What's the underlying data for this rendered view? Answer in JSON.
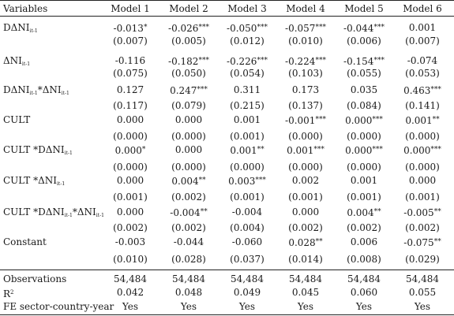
{
  "header": {
    "variables": "Variables",
    "models": [
      "Model 1",
      "Model 2",
      "Model 3",
      "Model 4",
      "Model 5",
      "Model 6"
    ]
  },
  "rows": [
    {
      "label": [
        {
          "t": "DΔNI"
        },
        {
          "t": "it-1",
          "s": "sub"
        }
      ],
      "coef": [
        [
          "-0.013",
          "*"
        ],
        [
          "-0.026",
          "***"
        ],
        [
          "-0.050",
          "***"
        ],
        [
          "-0.057",
          "***"
        ],
        [
          "-0.044",
          "***"
        ],
        [
          "0.001",
          ""
        ]
      ],
      "se": [
        "(0.007)",
        "(0.005)",
        "(0.012)",
        "(0.010)",
        "(0.006)",
        "(0.007)"
      ]
    },
    {
      "label": [
        {
          "t": "ΔNI"
        },
        {
          "t": "it-1",
          "s": "sub"
        }
      ],
      "coef": [
        [
          "-0.116",
          ""
        ],
        [
          "-0.182",
          "***"
        ],
        [
          "-0.226",
          "***"
        ],
        [
          "-0.224",
          "***"
        ],
        [
          "-0.154",
          "***"
        ],
        [
          "-0.074",
          ""
        ]
      ],
      "se": [
        "(0.075)",
        "(0.050)",
        "(0.054)",
        "(0.103)",
        "(0.055)",
        "(0.053)"
      ]
    },
    {
      "label": [
        {
          "t": "DΔNI"
        },
        {
          "t": "it-1",
          "s": "sub"
        },
        {
          "t": "*ΔNI"
        },
        {
          "t": "it-1",
          "s": "sub"
        }
      ],
      "coef": [
        [
          "0.127",
          ""
        ],
        [
          "0.247",
          "***"
        ],
        [
          "0.311",
          ""
        ],
        [
          "0.173",
          ""
        ],
        [
          "0.035",
          ""
        ],
        [
          "0.463",
          "***"
        ]
      ],
      "se": [
        "(0.117)",
        "(0.079)",
        "(0.215)",
        "(0.137)",
        "(0.084)",
        "(0.141)"
      ]
    },
    {
      "label": [
        {
          "t": "CULT"
        }
      ],
      "coef": [
        [
          "0.000",
          ""
        ],
        [
          "0.000",
          ""
        ],
        [
          "0.001",
          ""
        ],
        [
          "-0.001",
          "***"
        ],
        [
          "0.000",
          "***"
        ],
        [
          "0.001",
          "**"
        ]
      ],
      "se": [
        "(0.000)",
        "(0.000)",
        "(0.001)",
        "(0.000)",
        "(0.000)",
        "(0.000)"
      ]
    },
    {
      "label": [
        {
          "t": "CULT *DΔNI"
        },
        {
          "t": "it-1",
          "s": "sub"
        }
      ],
      "coef": [
        [
          "0.000",
          "*"
        ],
        [
          "0.000",
          ""
        ],
        [
          "0.001",
          "**"
        ],
        [
          "0.001",
          "***"
        ],
        [
          "0.000",
          "***"
        ],
        [
          "0.000",
          "***"
        ]
      ],
      "se": [
        "(0.000)",
        "(0.000)",
        "(0.000)",
        "(0.000)",
        "(0.000)",
        "(0.000)"
      ]
    },
    {
      "label": [
        {
          "t": "CULT *ΔNI"
        },
        {
          "t": "it-1",
          "s": "sub"
        }
      ],
      "coef": [
        [
          "0.000",
          ""
        ],
        [
          "0.004",
          "**"
        ],
        [
          "0.003",
          "***"
        ],
        [
          "0.002",
          ""
        ],
        [
          "0.001",
          ""
        ],
        [
          "0.000",
          ""
        ]
      ],
      "se": [
        "(0.001)",
        "(0.002)",
        "(0.001)",
        "(0.001)",
        "(0.001)",
        "(0.001)"
      ]
    },
    {
      "label": [
        {
          "t": "CULT *DΔNI"
        },
        {
          "t": "it-1",
          "s": "sub"
        },
        {
          "t": "*ΔNI"
        },
        {
          "t": "it-1",
          "s": "sub"
        }
      ],
      "coef": [
        [
          "0.000",
          ""
        ],
        [
          "-0.004",
          "**"
        ],
        [
          "-0.004",
          ""
        ],
        [
          "0.000",
          ""
        ],
        [
          "0.004",
          "**"
        ],
        [
          "-0.005",
          "**"
        ]
      ],
      "se": [
        "(0.002)",
        "(0.002)",
        "(0.004)",
        "(0.002)",
        "(0.002)",
        "(0.002)"
      ]
    },
    {
      "label": [
        {
          "t": "Constant"
        }
      ],
      "coef": [
        [
          "-0.003",
          ""
        ],
        [
          "-0.044",
          ""
        ],
        [
          "-0.060",
          ""
        ],
        [
          "0.028",
          "**"
        ],
        [
          "0.006",
          ""
        ],
        [
          "-0.075",
          "**"
        ]
      ],
      "se": [
        "(0.010)",
        "(0.028)",
        "(0.037)",
        "(0.014)",
        "(0.008)",
        "(0.029)"
      ]
    }
  ],
  "stats": [
    {
      "label": [
        {
          "t": "Observations"
        }
      ],
      "values": [
        "54,484",
        "54,484",
        "54,484",
        "54,484",
        "54,484",
        "54,484"
      ]
    },
    {
      "label": [
        {
          "t": "R"
        },
        {
          "t": "2",
          "s": "sup"
        }
      ],
      "values": [
        "0.042",
        "0.048",
        "0.049",
        "0.045",
        "0.060",
        "0.055"
      ]
    },
    {
      "label": [
        {
          "t": "FE sector-country-year"
        }
      ],
      "values": [
        "Yes",
        "Yes",
        "Yes",
        "Yes",
        "Yes",
        "Yes"
      ]
    }
  ]
}
